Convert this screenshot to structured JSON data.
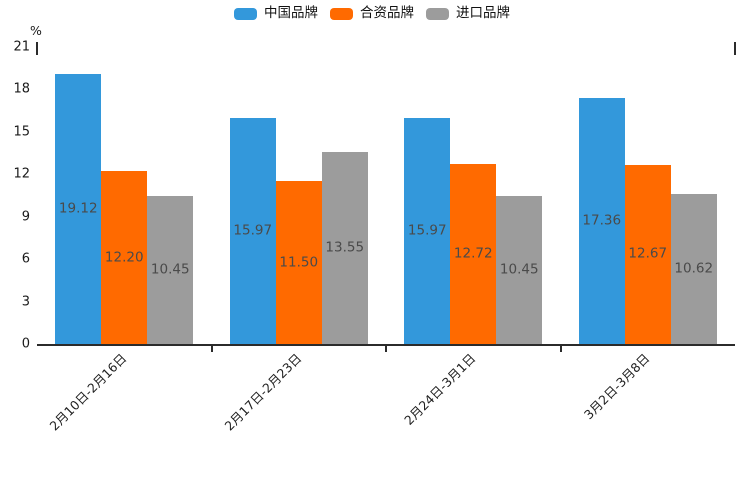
{
  "chart_data": {
    "type": "bar",
    "title": "",
    "xlabel": "",
    "ylabel": "%",
    "ylim": [
      0,
      21
    ],
    "yticks": [
      0,
      3,
      6,
      9,
      12,
      15,
      18,
      21
    ],
    "grid": false,
    "legend_position": "top-center",
    "value_label_format": "2-decimals",
    "value_label_position": "inside-middle",
    "categories": [
      "2月10日-2月16日",
      "2月17日-2月23日",
      "2月24日-3月1日",
      "3月2日-3月8日"
    ],
    "series": [
      {
        "name": "中国品牌",
        "color": "#3398DB",
        "values": [
          19.12,
          15.97,
          15.97,
          17.36
        ]
      },
      {
        "name": "合资品牌",
        "color": "#FF6A00",
        "values": [
          12.2,
          11.5,
          12.72,
          12.67
        ]
      },
      {
        "name": "进口品牌",
        "color": "#9C9C9C",
        "values": [
          10.45,
          13.55,
          10.45,
          10.62
        ]
      }
    ]
  },
  "colors": {
    "background": "#FFFFFF",
    "axis_line": "#2B2B2B",
    "tick_text": "#1A1A1A",
    "value_label_text": "#4A4A4A"
  }
}
